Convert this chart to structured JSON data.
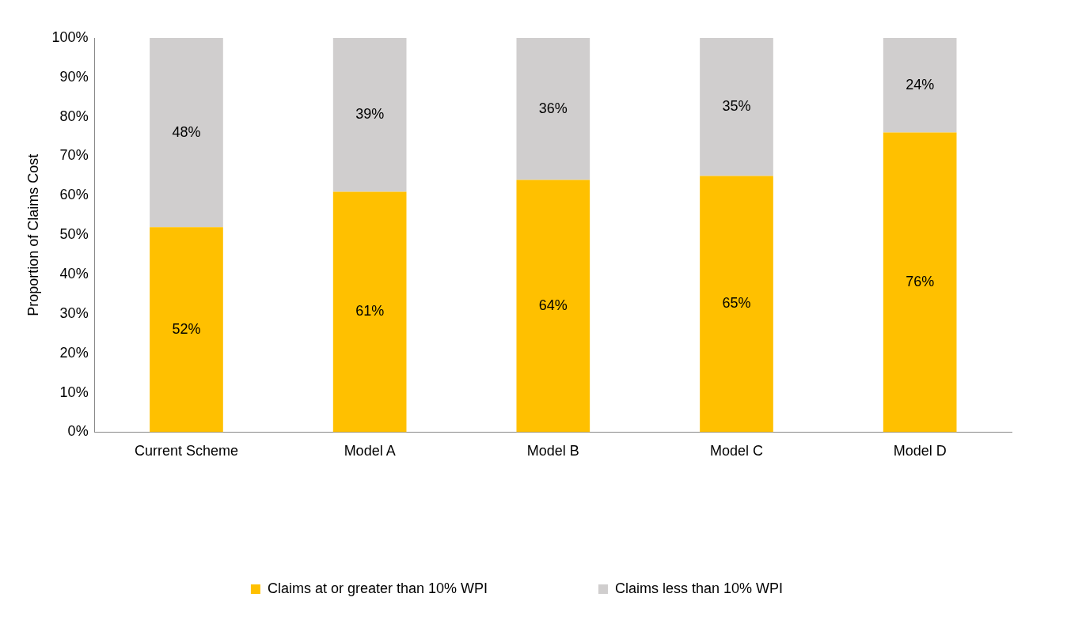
{
  "chart_data": {
    "type": "bar",
    "stacked": true,
    "ylabel": "Proportion of Claims Cost",
    "categories": [
      "Current Scheme",
      "Model A",
      "Model B",
      "Model C",
      "Model D"
    ],
    "series": [
      {
        "name": "Claims at or greater than 10% WPI",
        "color": "#ffc000",
        "values": [
          52,
          61,
          64,
          65,
          76
        ],
        "value_labels": [
          "52%",
          "61%",
          "64%",
          "65%",
          "76%"
        ]
      },
      {
        "name": "Claims less than 10% WPI",
        "color": "#d0cece",
        "values": [
          48,
          39,
          36,
          35,
          24
        ],
        "value_labels": [
          "48%",
          "39%",
          "36%",
          "35%",
          "24%"
        ]
      }
    ],
    "ylim": [
      0,
      100
    ],
    "yticks": [
      {
        "value": 0,
        "label": "0%"
      },
      {
        "value": 10,
        "label": "10%"
      },
      {
        "value": 20,
        "label": "20%"
      },
      {
        "value": 30,
        "label": "30%"
      },
      {
        "value": 40,
        "label": "40%"
      },
      {
        "value": 50,
        "label": "50%"
      },
      {
        "value": 60,
        "label": "60%"
      },
      {
        "value": 70,
        "label": "70%"
      },
      {
        "value": 80,
        "label": "80%"
      },
      {
        "value": 90,
        "label": "90%"
      },
      {
        "value": 100,
        "label": "100%"
      }
    ],
    "grid": false,
    "legend": "bottom"
  }
}
